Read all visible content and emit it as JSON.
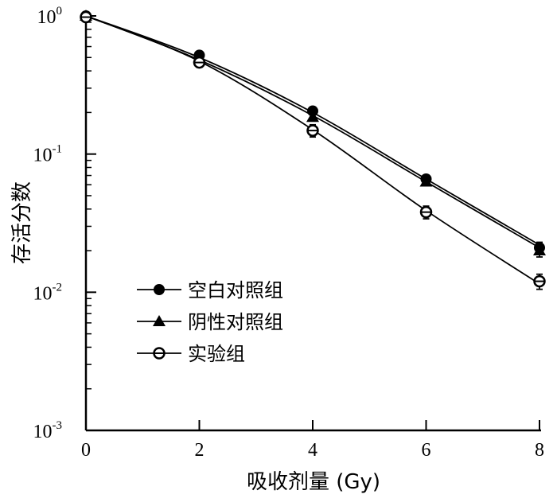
{
  "chart_data": {
    "type": "line",
    "xlabel": "吸收剂量 (Gy)",
    "ylabel": "存活分数",
    "x_ticks": [
      0,
      2,
      4,
      6,
      8
    ],
    "xlim": [
      0,
      8
    ],
    "ylim": [
      0.001,
      1
    ],
    "y_scale": "log",
    "y_ticks": [
      {
        "value": 1,
        "base": "10",
        "exp": "0"
      },
      {
        "value": 0.1,
        "base": "10",
        "exp": "-1"
      },
      {
        "value": 0.01,
        "base": "10",
        "exp": "-2"
      },
      {
        "value": 0.001,
        "base": "10",
        "exp": "-3"
      }
    ],
    "grid": false,
    "legend_position": "bottom-left",
    "x": [
      0,
      2,
      4,
      6,
      8
    ],
    "series": [
      {
        "name": "空白对照组",
        "marker": "circle",
        "values": [
          1.0,
          0.52,
          0.205,
          0.066,
          0.021
        ],
        "errors": [
          0.05,
          0.03,
          0.01,
          0.004,
          0.002
        ],
        "fit": [
          1.0,
          0.5,
          0.2,
          0.066,
          0.022
        ]
      },
      {
        "name": "阴性对照组",
        "marker": "triangle",
        "values": [
          1.0,
          0.5,
          0.185,
          0.063,
          0.02
        ],
        "errors": [
          0.05,
          0.03,
          0.01,
          0.004,
          0.002
        ],
        "fit": [
          1.0,
          0.48,
          0.19,
          0.063,
          0.021
        ]
      },
      {
        "name": "实验组",
        "marker": "circle-cross",
        "values": [
          0.98,
          0.46,
          0.148,
          0.038,
          0.012
        ],
        "errors": [
          0.06,
          0.035,
          0.015,
          0.004,
          0.0015
        ],
        "fit": [
          1.0,
          0.47,
          0.15,
          0.039,
          0.0115
        ]
      }
    ]
  }
}
